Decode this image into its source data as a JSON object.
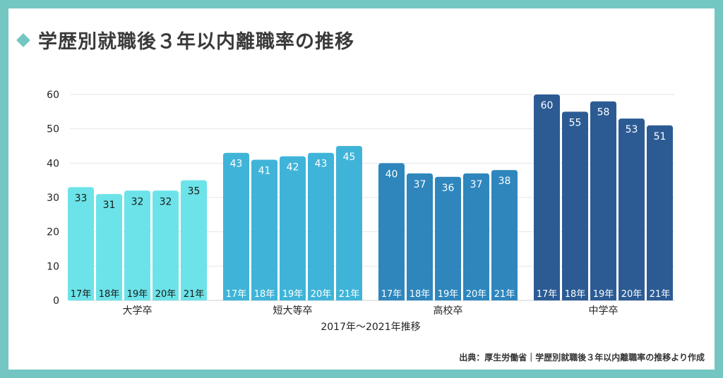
{
  "title": "学歴別就職後３年以内離職率の推移",
  "source": "出典：厚生労働省｜学歴別就職後３年以内離職率の推移より作成",
  "colors": {
    "frame": "#73c6c2",
    "series": [
      "#6ce3e8",
      "#40b4d8",
      "#2e86bd",
      "#2c5b94"
    ],
    "bar_label": "#1a1a1a",
    "bar_label_dark": "#ffffff"
  },
  "chart_data": {
    "type": "bar",
    "xlabel": "2017年～2021年推移",
    "ylabel": "",
    "ylim": [
      0,
      60
    ],
    "yticks": [
      0,
      10,
      20,
      30,
      40,
      50,
      60
    ],
    "grid": true,
    "groups": [
      {
        "name": "大学卒",
        "years": [
          "17年",
          "18年",
          "19年",
          "20年",
          "21年"
        ],
        "values": [
          33,
          31,
          32,
          32,
          35
        ]
      },
      {
        "name": "短大等卒",
        "years": [
          "17年",
          "18年",
          "19年",
          "20年",
          "21年"
        ],
        "values": [
          43,
          41,
          42,
          43,
          45
        ]
      },
      {
        "name": "高校卒",
        "years": [
          "17年",
          "18年",
          "19年",
          "20年",
          "21年"
        ],
        "values": [
          40,
          37,
          36,
          37,
          38
        ]
      },
      {
        "name": "中学卒",
        "years": [
          "17年",
          "18年",
          "19年",
          "20年",
          "21年"
        ],
        "values": [
          60,
          55,
          58,
          53,
          51
        ]
      }
    ]
  }
}
